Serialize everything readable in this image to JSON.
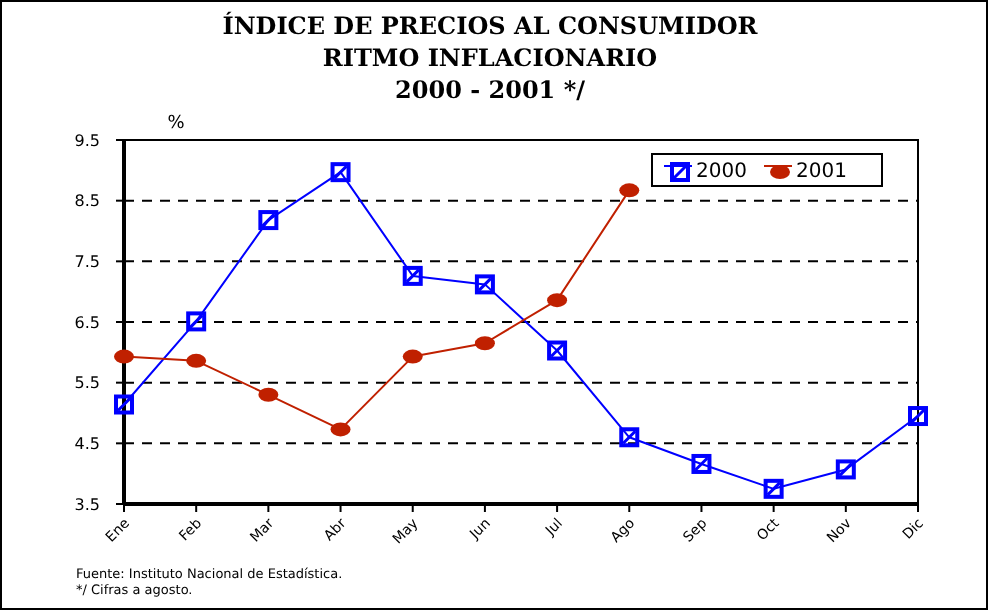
{
  "chart_data": {
    "type": "line",
    "title": "ÍNDICE DE PRECIOS AL CONSUMIDOR\nRITMO INFLACIONARIO\n2000 - 2001 */",
    "ylabel": "%",
    "categories": [
      "Ene",
      "Feb",
      "Mar",
      "Abr",
      "May",
      "Jun",
      "Jul",
      "Ago",
      "Sep",
      "Oct",
      "Nov",
      "Dic"
    ],
    "series": [
      {
        "name": "2000",
        "color": "#0000ff",
        "marker": "square",
        "values": [
          5.14,
          6.51,
          8.18,
          8.97,
          7.26,
          7.12,
          6.03,
          4.6,
          4.16,
          3.75,
          4.07,
          4.95
        ]
      },
      {
        "name": "2001",
        "color": "#c02000",
        "marker": "circle",
        "values": [
          5.93,
          5.86,
          5.3,
          4.73,
          5.93,
          6.15,
          6.86,
          8.67,
          null,
          null,
          null,
          null
        ]
      }
    ],
    "ylim": [
      3.5,
      9.5
    ],
    "yticks": [
      3.5,
      4.5,
      5.5,
      6.5,
      7.5,
      8.5,
      9.5
    ],
    "grid": "y",
    "legend": "top right",
    "line_style": "solid",
    "annotations": [
      "Fuente: Instituto Nacional de Estadística.",
      "*/ Cifras a agosto."
    ]
  }
}
